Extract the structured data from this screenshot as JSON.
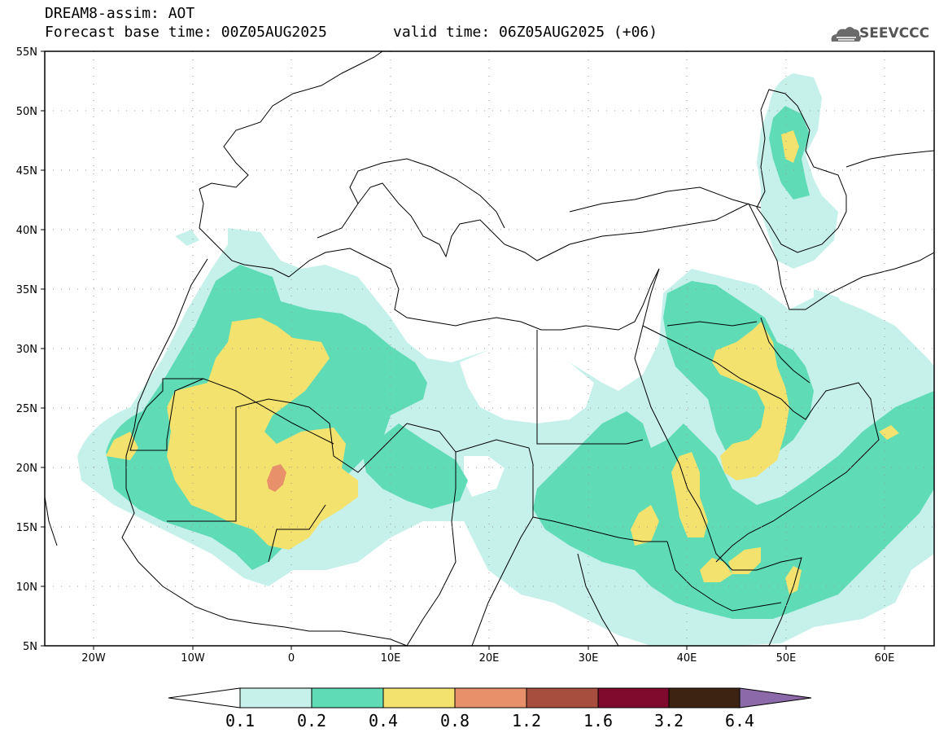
{
  "header": {
    "title": "DREAM8-assim: AOT",
    "base_time": "Forecast base time: 00Z05AUG2025",
    "valid_time": "valid time: 06Z05AUG2025 (+06)"
  },
  "logo": {
    "text": "SEEVCCC",
    "icon": "cloud-icon"
  },
  "map": {
    "lon_range": [
      -25,
      65
    ],
    "lat_range": [
      5,
      55
    ],
    "lat_labels": [
      "55N",
      "50N",
      "45N",
      "40N",
      "35N",
      "30N",
      "25N",
      "20N",
      "15N",
      "10N",
      "5N"
    ],
    "lon_labels": [
      "20W",
      "10W",
      "0",
      "10E",
      "20E",
      "30E",
      "40E",
      "50E",
      "60E"
    ]
  },
  "legend": {
    "labels": [
      "0.1",
      "0.2",
      "0.4",
      "0.8",
      "1.2",
      "1.6",
      "3.2",
      "6.4"
    ],
    "colors": [
      "#ffffff",
      "#c6f1ea",
      "#5fdcb6",
      "#f4e26f",
      "#e8906a",
      "#a84e3e",
      "#7f0a2e",
      "#3d2412",
      "#8c69a8"
    ]
  },
  "colors": {
    "aot_01": "#c6f1ea",
    "aot_02": "#5fdcb6",
    "aot_04": "#f4e26f",
    "aot_08": "#e8906a"
  }
}
